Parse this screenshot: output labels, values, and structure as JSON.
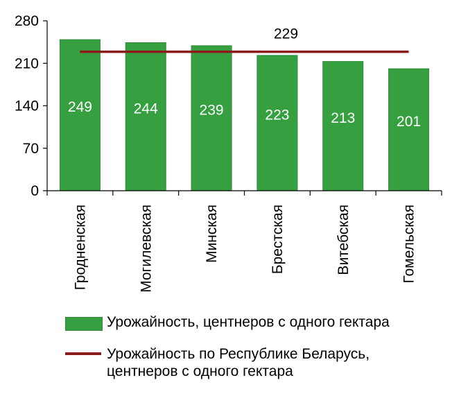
{
  "chart_data": {
    "type": "bar",
    "categories": [
      "Гродненская",
      "Могилевская",
      "Минская",
      "Брестская",
      "Витебская",
      "Гомельская"
    ],
    "series": [
      {
        "name": "Урожайность, центнеров с одного гектара",
        "type": "bar",
        "values": [
          249,
          244,
          239,
          223,
          213,
          201
        ],
        "color": "#36A040"
      },
      {
        "name": "Урожайность по Республике Беларусь, центнеров с одного гектара",
        "type": "line",
        "values": [
          229,
          229,
          229,
          229,
          229,
          229
        ],
        "color": "#8B1A1A",
        "label": "229"
      }
    ],
    "yticks": [
      "0",
      "70",
      "140",
      "210",
      "280"
    ],
    "ylim": [
      0,
      280
    ],
    "grid": false,
    "legend_position": "bottom"
  },
  "legend": {
    "bar_label": "Урожайность, центнеров с одного гектара",
    "line_label_1": "Урожайность по Республике Беларусь,",
    "line_label_2": "центнеров с одного гектара"
  }
}
